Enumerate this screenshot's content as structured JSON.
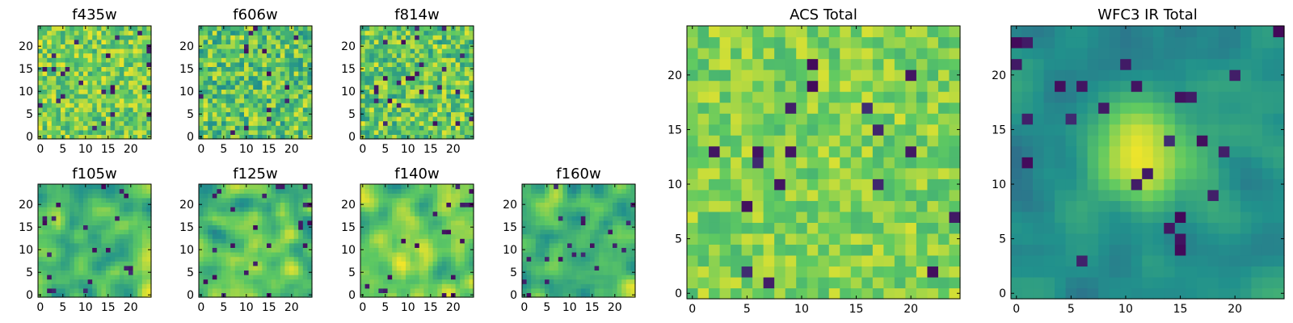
{
  "figure": {
    "background": "#ffffff"
  },
  "colormap": {
    "name": "viridis",
    "stops": [
      "#440154",
      "#3b528b",
      "#21918c",
      "#5ec962",
      "#fde725"
    ]
  },
  "chart_data": [
    {
      "id": "f435w",
      "type": "heatmap",
      "title": "f435w",
      "grid": [
        25,
        25
      ],
      "xlim": [
        -0.5,
        24.5
      ],
      "ylim": [
        -0.5,
        24.5
      ],
      "xticks": [
        0,
        5,
        10,
        15,
        20
      ],
      "yticks": [
        0,
        5,
        10,
        15,
        20
      ],
      "xtick_labels": [
        "0",
        "5",
        "10",
        "15",
        "20"
      ],
      "ytick_labels": [
        "0",
        "5",
        "10",
        "15",
        "20"
      ],
      "pattern": "uniform-noise",
      "mean": 0.78,
      "spread": 0.2,
      "hotspot_strength": 0,
      "seed": 11
    },
    {
      "id": "f606w",
      "type": "heatmap",
      "title": "f606w",
      "grid": [
        25,
        25
      ],
      "xlim": [
        -0.5,
        24.5
      ],
      "ylim": [
        -0.5,
        24.5
      ],
      "xticks": [
        0,
        5,
        10,
        15,
        20
      ],
      "yticks": [
        0,
        5,
        10,
        15,
        20
      ],
      "xtick_labels": [
        "0",
        "5",
        "10",
        "15",
        "20"
      ],
      "ytick_labels": [
        "0",
        "5",
        "10",
        "15",
        "20"
      ],
      "pattern": "uniform-noise",
      "mean": 0.72,
      "spread": 0.24,
      "hotspot_strength": 0,
      "seed": 23
    },
    {
      "id": "f814w",
      "type": "heatmap",
      "title": "f814w",
      "grid": [
        25,
        25
      ],
      "xlim": [
        -0.5,
        24.5
      ],
      "ylim": [
        -0.5,
        24.5
      ],
      "xticks": [
        0,
        5,
        10,
        15,
        20
      ],
      "yticks": [
        0,
        5,
        10,
        15,
        20
      ],
      "xtick_labels": [
        "0",
        "5",
        "10",
        "15",
        "20"
      ],
      "ytick_labels": [
        "0",
        "5",
        "10",
        "15",
        "20"
      ],
      "pattern": "uniform-noise",
      "mean": 0.74,
      "spread": 0.23,
      "hotspot_strength": 0,
      "seed": 37
    },
    {
      "id": "f105w",
      "type": "heatmap",
      "title": "f105w",
      "grid": [
        25,
        25
      ],
      "xlim": [
        -0.5,
        24.5
      ],
      "ylim": [
        -0.5,
        24.5
      ],
      "xticks": [
        0,
        5,
        10,
        15,
        20
      ],
      "yticks": [
        0,
        5,
        10,
        15,
        20
      ],
      "xtick_labels": [
        "0",
        "5",
        "10",
        "15",
        "20"
      ],
      "ytick_labels": [
        "0",
        "5",
        "10",
        "15",
        "20"
      ],
      "pattern": "smooth-noise",
      "mean": 0.72,
      "spread": 0.25,
      "hotspot_strength": 0.1,
      "seed": 41
    },
    {
      "id": "f125w",
      "type": "heatmap",
      "title": "f125w",
      "grid": [
        25,
        25
      ],
      "xlim": [
        -0.5,
        24.5
      ],
      "ylim": [
        -0.5,
        24.5
      ],
      "xticks": [
        0,
        5,
        10,
        15,
        20
      ],
      "yticks": [
        0,
        5,
        10,
        15,
        20
      ],
      "xtick_labels": [
        "0",
        "5",
        "10",
        "15",
        "20"
      ],
      "ytick_labels": [
        "0",
        "5",
        "10",
        "15",
        "20"
      ],
      "pattern": "smooth-noise",
      "mean": 0.7,
      "spread": 0.25,
      "hotspot_strength": 0.2,
      "seed": 53
    },
    {
      "id": "f140w",
      "type": "heatmap",
      "title": "f140w",
      "grid": [
        25,
        25
      ],
      "xlim": [
        -0.5,
        24.5
      ],
      "ylim": [
        -0.5,
        24.5
      ],
      "xticks": [
        0,
        5,
        10,
        15,
        20
      ],
      "yticks": [
        0,
        5,
        10,
        15,
        20
      ],
      "xtick_labels": [
        "0",
        "5",
        "10",
        "15",
        "20"
      ],
      "ytick_labels": [
        "0",
        "5",
        "10",
        "15",
        "20"
      ],
      "pattern": "smooth-noise",
      "mean": 0.73,
      "spread": 0.25,
      "hotspot_strength": 0.15,
      "seed": 67
    },
    {
      "id": "f160w",
      "type": "heatmap",
      "title": "f160w",
      "grid": [
        25,
        25
      ],
      "xlim": [
        -0.5,
        24.5
      ],
      "ylim": [
        -0.5,
        24.5
      ],
      "xticks": [
        0,
        5,
        10,
        15,
        20
      ],
      "yticks": [
        0,
        5,
        10,
        15,
        20
      ],
      "xtick_labels": [
        "0",
        "5",
        "10",
        "15",
        "20"
      ],
      "ytick_labels": [
        "0",
        "5",
        "10",
        "15",
        "20"
      ],
      "pattern": "smooth-noise",
      "mean": 0.7,
      "spread": 0.26,
      "hotspot_strength": 0.1,
      "seed": 79
    },
    {
      "id": "acs-total",
      "type": "heatmap",
      "title": "ACS Total",
      "grid": [
        25,
        25
      ],
      "xlim": [
        -0.5,
        24.5
      ],
      "ylim": [
        -0.5,
        24.5
      ],
      "xticks": [
        0,
        5,
        10,
        15,
        20
      ],
      "yticks": [
        0,
        5,
        10,
        15,
        20
      ],
      "xtick_labels": [
        "0",
        "5",
        "10",
        "15",
        "20"
      ],
      "ytick_labels": [
        "0",
        "5",
        "10",
        "15",
        "20"
      ],
      "pattern": "uniform-noise",
      "mean": 0.8,
      "spread": 0.14,
      "hotspot_strength": 0,
      "seed": 97
    },
    {
      "id": "wfc3-ir-total",
      "type": "heatmap",
      "title": "WFC3 IR Total",
      "grid": [
        25,
        25
      ],
      "xlim": [
        -0.5,
        24.5
      ],
      "ylim": [
        -0.5,
        24.5
      ],
      "xticks": [
        0,
        5,
        10,
        15,
        20
      ],
      "yticks": [
        0,
        5,
        10,
        15,
        20
      ],
      "xtick_labels": [
        "0",
        "5",
        "10",
        "15",
        "20"
      ],
      "ytick_labels": [
        "0",
        "5",
        "10",
        "15",
        "20"
      ],
      "pattern": "smooth-noise-with-central-source",
      "mean": 0.5,
      "spread": 0.13,
      "hotspot_strength": 0.5,
      "hotspot_center": [
        12,
        13
      ],
      "hotspot_sigma": 3.2,
      "seed": 131
    }
  ]
}
